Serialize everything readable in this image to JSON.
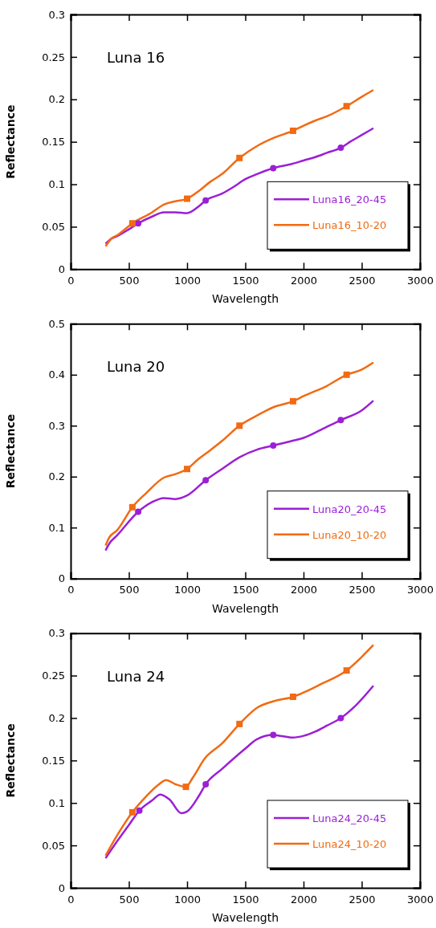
{
  "chart_data": [
    {
      "type": "line",
      "title": "Luna 16",
      "xlabel": "Wavelength",
      "ylabel": "Reflectance",
      "xlim": [
        0,
        3000
      ],
      "xticks": [
        0,
        500,
        1000,
        1500,
        2000,
        2500,
        3000
      ],
      "ylim": [
        0,
        0.3
      ],
      "yticks": [
        0,
        0.05,
        0.1,
        0.15,
        0.2,
        0.25,
        0.3
      ],
      "legend": "bottom right",
      "grid": false,
      "series": [
        {
          "name": "Luna16_20-45",
          "color": "#9b1fd6",
          "x": [
            300,
            350,
            400,
            500,
            580,
            700,
            800,
            900,
            1000,
            1100,
            1160,
            1300,
            1400,
            1500,
            1600,
            1740,
            1900,
            2000,
            2100,
            2200,
            2320,
            2400,
            2500,
            2600
          ],
          "values": [
            0.03,
            0.036,
            0.039,
            0.047,
            0.054,
            0.062,
            0.067,
            0.067,
            0.066,
            0.074,
            0.081,
            0.089,
            0.097,
            0.106,
            0.112,
            0.119,
            0.124,
            0.128,
            0.132,
            0.137,
            0.143,
            0.15,
            0.158,
            0.166
          ]
        },
        {
          "name": "Luna16_10-20",
          "color": "#f26a12",
          "x": [
            300,
            350,
            400,
            530,
            700,
            800,
            900,
            1000,
            1100,
            1200,
            1300,
            1450,
            1600,
            1750,
            1910,
            2000,
            2100,
            2200,
            2370,
            2500,
            2600
          ],
          "values": [
            0.027,
            0.036,
            0.04,
            0.054,
            0.067,
            0.076,
            0.08,
            0.083,
            0.092,
            0.103,
            0.112,
            0.131,
            0.145,
            0.155,
            0.163,
            0.169,
            0.175,
            0.18,
            0.192,
            0.203,
            0.211
          ]
        },
        {
          "type": "scatter",
          "marker": "circle",
          "color": "#9b1fd6",
          "x": [
            580,
            1160,
            1740,
            2320
          ],
          "values": [
            0.054,
            0.081,
            0.119,
            0.143
          ]
        },
        {
          "type": "scatter",
          "marker": "square",
          "color": "#f26a12",
          "x": [
            530,
            1000,
            1450,
            1910,
            2370
          ],
          "values": [
            0.054,
            0.083,
            0.131,
            0.163,
            0.192
          ]
        }
      ]
    },
    {
      "type": "line",
      "title": "Luna 20",
      "xlabel": "Wavelength",
      "ylabel": "Reflectance",
      "xlim": [
        0,
        3000
      ],
      "xticks": [
        0,
        500,
        1000,
        1500,
        2000,
        2500,
        3000
      ],
      "ylim": [
        0,
        0.5
      ],
      "yticks": [
        0,
        0.1,
        0.2,
        0.3,
        0.4,
        0.5
      ],
      "legend": "bottom right",
      "grid": false,
      "series": [
        {
          "name": "Luna20_20-45",
          "color": "#9b1fd6",
          "x": [
            300,
            330,
            400,
            580,
            700,
            800,
            900,
            1000,
            1160,
            1300,
            1450,
            1600,
            1740,
            1900,
            2000,
            2150,
            2320,
            2500,
            2600
          ],
          "values": [
            0.055,
            0.068,
            0.085,
            0.131,
            0.15,
            0.158,
            0.156,
            0.163,
            0.193,
            0.215,
            0.238,
            0.253,
            0.261,
            0.27,
            0.276,
            0.292,
            0.311,
            0.33,
            0.349
          ]
        },
        {
          "name": "Luna20_10-20",
          "color": "#f26a12",
          "x": [
            300,
            330,
            400,
            530,
            650,
            800,
            900,
            1000,
            1100,
            1200,
            1300,
            1450,
            1600,
            1750,
            1910,
            2000,
            2200,
            2370,
            2500,
            2600
          ],
          "values": [
            0.065,
            0.08,
            0.095,
            0.14,
            0.168,
            0.198,
            0.205,
            0.215,
            0.235,
            0.252,
            0.27,
            0.3,
            0.32,
            0.337,
            0.348,
            0.358,
            0.378,
            0.4,
            0.41,
            0.424
          ]
        },
        {
          "type": "scatter",
          "marker": "circle",
          "color": "#9b1fd6",
          "x": [
            580,
            1160,
            1740,
            2320
          ],
          "values": [
            0.131,
            0.193,
            0.261,
            0.311
          ]
        },
        {
          "type": "scatter",
          "marker": "square",
          "color": "#f26a12",
          "x": [
            530,
            1000,
            1450,
            1910,
            2370
          ],
          "values": [
            0.14,
            0.215,
            0.3,
            0.348,
            0.4
          ]
        }
      ]
    },
    {
      "type": "line",
      "title": "Luna 24",
      "xlabel": "Wavelength",
      "ylabel": "Reflectance",
      "xlim": [
        0,
        3000
      ],
      "xticks": [
        0,
        500,
        1000,
        1500,
        2000,
        2500,
        3000
      ],
      "ylim": [
        0,
        0.3
      ],
      "yticks": [
        0,
        0.05,
        0.1,
        0.15,
        0.2,
        0.25,
        0.3
      ],
      "legend": "bottom right",
      "grid": false,
      "series": [
        {
          "name": "Luna24_20-45",
          "color": "#9b1fd6",
          "x": [
            300,
            400,
            500,
            590,
            700,
            770,
            850,
            950,
            1000,
            1100,
            1160,
            1300,
            1500,
            1600,
            1740,
            1800,
            1910,
            2000,
            2100,
            2200,
            2320,
            2450,
            2600
          ],
          "values": [
            0.035,
            0.055,
            0.074,
            0.091,
            0.103,
            0.11,
            0.104,
            0.088,
            0.09,
            0.108,
            0.122,
            0.14,
            0.164,
            0.175,
            0.18,
            0.179,
            0.177,
            0.179,
            0.184,
            0.191,
            0.2,
            0.215,
            0.238
          ]
        },
        {
          "name": "Luna24_10-20",
          "color": "#f26a12",
          "x": [
            300,
            400,
            530,
            650,
            750,
            820,
            900,
            990,
            1050,
            1150,
            1300,
            1450,
            1600,
            1750,
            1910,
            2000,
            2150,
            2370,
            2500,
            2600
          ],
          "values": [
            0.038,
            0.062,
            0.089,
            0.108,
            0.121,
            0.127,
            0.122,
            0.119,
            0.13,
            0.152,
            0.17,
            0.193,
            0.212,
            0.22,
            0.225,
            0.23,
            0.24,
            0.256,
            0.272,
            0.286
          ]
        },
        {
          "type": "scatter",
          "marker": "circle",
          "color": "#9b1fd6",
          "x": [
            590,
            1160,
            1740,
            2320
          ],
          "values": [
            0.091,
            0.122,
            0.18,
            0.2
          ]
        },
        {
          "type": "scatter",
          "marker": "square",
          "color": "#f26a12",
          "x": [
            530,
            990,
            1450,
            1910,
            2370
          ],
          "values": [
            0.089,
            0.119,
            0.193,
            0.225,
            0.256
          ]
        }
      ]
    }
  ]
}
